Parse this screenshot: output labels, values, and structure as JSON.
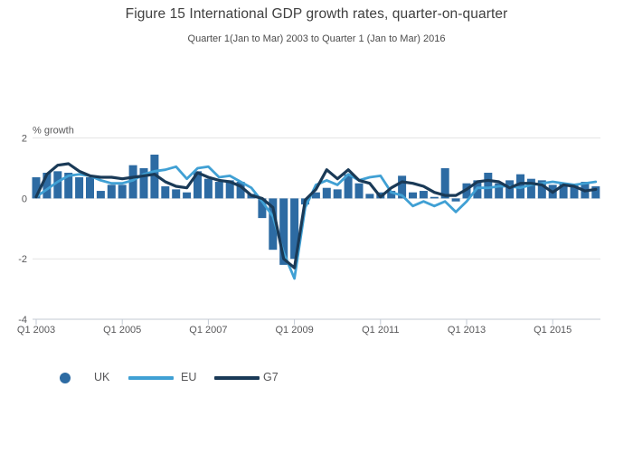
{
  "header": {
    "title": "Figure 15 International GDP growth rates, quarter-on-quarter",
    "subtitle": "Quarter 1(Jan to Mar) 2003 to Quarter 1 (Jan to Mar) 2016"
  },
  "legend": {
    "uk_label": "UK",
    "eu_label": "EU",
    "g7_label": "G7"
  },
  "colors": {
    "uk_bar": "#2d6ba3",
    "eu_line": "#40a0d4",
    "g7_line": "#1a3a57",
    "gridline": "#e3e3e3",
    "zero_gridline": "#ebebeb",
    "axis": "#c3cad3",
    "text": "#58585a"
  },
  "chart_data": {
    "type": "bar",
    "title": "Figure 15 International GDP growth rates, quarter-on-quarter",
    "subtitle": "Quarter 1(Jan to Mar) 2003 to Quarter 1 (Jan to Mar) 2016",
    "xlabel": "",
    "ylabel": "% growth",
    "ylim": [
      -4,
      2
    ],
    "y_ticks": [
      2,
      0,
      -2,
      -4
    ],
    "grid": true,
    "legend_position": "bottom",
    "x_tick_labels": [
      "Q1 2003",
      "Q1 2005",
      "Q1 2007",
      "Q1 2009",
      "Q1 2011",
      "Q1 2013",
      "Q1 2015"
    ],
    "x_tick_indices": [
      0,
      8,
      16,
      24,
      32,
      40,
      48
    ],
    "categories": [
      "Q1 2003",
      "Q2 2003",
      "Q3 2003",
      "Q4 2003",
      "Q1 2004",
      "Q2 2004",
      "Q3 2004",
      "Q4 2004",
      "Q1 2005",
      "Q2 2005",
      "Q3 2005",
      "Q4 2005",
      "Q1 2006",
      "Q2 2006",
      "Q3 2006",
      "Q4 2006",
      "Q1 2007",
      "Q2 2007",
      "Q3 2007",
      "Q4 2007",
      "Q1 2008",
      "Q2 2008",
      "Q3 2008",
      "Q4 2008",
      "Q1 2009",
      "Q2 2009",
      "Q3 2009",
      "Q4 2009",
      "Q1 2010",
      "Q2 2010",
      "Q3 2010",
      "Q4 2010",
      "Q1 2011",
      "Q2 2011",
      "Q3 2011",
      "Q4 2011",
      "Q1 2012",
      "Q2 2012",
      "Q3 2012",
      "Q4 2012",
      "Q1 2013",
      "Q2 2013",
      "Q3 2013",
      "Q4 2013",
      "Q1 2014",
      "Q2 2014",
      "Q3 2014",
      "Q4 2014",
      "Q1 2015",
      "Q2 2015",
      "Q3 2015",
      "Q4 2015",
      "Q1 2016"
    ],
    "series": [
      {
        "name": "UK",
        "type": "bar",
        "color": "#2d6ba3",
        "values": [
          0.7,
          0.85,
          0.9,
          0.85,
          0.7,
          0.7,
          0.25,
          0.45,
          0.45,
          1.1,
          1.0,
          1.45,
          0.4,
          0.3,
          0.2,
          0.9,
          0.65,
          0.55,
          0.6,
          0.55,
          0.15,
          -0.65,
          -1.7,
          -2.2,
          -2.0,
          -0.2,
          0.2,
          0.35,
          0.3,
          0.8,
          0.5,
          0.15,
          0.2,
          0.25,
          0.75,
          0.2,
          0.25,
          0.05,
          1.0,
          -0.1,
          0.5,
          0.6,
          0.85,
          0.5,
          0.6,
          0.8,
          0.65,
          0.6,
          0.45,
          0.5,
          0.45,
          0.55,
          0.4
        ]
      },
      {
        "name": "EU",
        "type": "line",
        "color": "#40a0d4",
        "values": [
          0.05,
          0.3,
          0.55,
          0.75,
          0.8,
          0.75,
          0.6,
          0.5,
          0.5,
          0.6,
          0.8,
          0.9,
          0.95,
          1.05,
          0.65,
          1.0,
          1.05,
          0.7,
          0.75,
          0.55,
          0.35,
          -0.1,
          -0.6,
          -1.8,
          -2.65,
          -0.3,
          0.45,
          0.6,
          0.45,
          0.8,
          0.6,
          0.7,
          0.75,
          0.2,
          0.1,
          -0.25,
          -0.1,
          -0.25,
          -0.1,
          -0.45,
          -0.1,
          0.35,
          0.35,
          0.4,
          0.4,
          0.35,
          0.45,
          0.5,
          0.55,
          0.5,
          0.45,
          0.5,
          0.55
        ]
      },
      {
        "name": "G7",
        "type": "line",
        "color": "#1a3a57",
        "values": [
          0.05,
          0.8,
          1.1,
          1.15,
          0.9,
          0.75,
          0.7,
          0.7,
          0.65,
          0.7,
          0.75,
          0.8,
          0.55,
          0.4,
          0.35,
          0.85,
          0.7,
          0.6,
          0.55,
          0.4,
          0.1,
          0.0,
          -0.3,
          -2.0,
          -2.3,
          -0.05,
          0.3,
          0.95,
          0.65,
          0.95,
          0.6,
          0.5,
          0.05,
          0.35,
          0.55,
          0.5,
          0.4,
          0.2,
          0.1,
          0.1,
          0.3,
          0.55,
          0.6,
          0.55,
          0.35,
          0.5,
          0.5,
          0.45,
          0.2,
          0.45,
          0.4,
          0.25,
          0.3
        ]
      }
    ]
  }
}
